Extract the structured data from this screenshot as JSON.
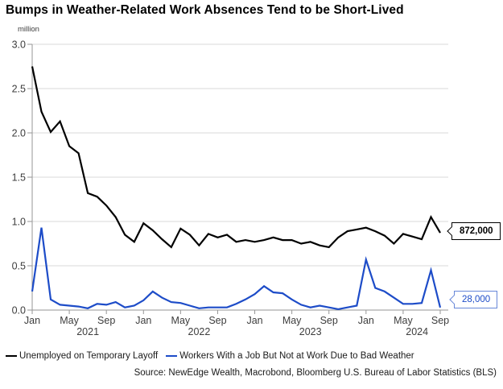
{
  "title": "Bumps in Weather-Related Work Absences Tend to be Short-Lived",
  "source": "Source: NewEdge Wealth, Macrobond, Bloomberg U.S. Bureau of Labor Statistics (BLS)",
  "colors": {
    "series_black": "#000000",
    "series_blue": "#1d4cc8",
    "gridline": "#d9d9d9",
    "axis": "#969696",
    "tick_label": "#3d3d3d",
    "callout_blue_border": "#6787d8"
  },
  "chart_data": {
    "type": "line",
    "title": "Bumps in Weather-Related Work Absences Tend to be Short-Lived",
    "unit_label": "million",
    "ylabel": "million",
    "xlabel": "",
    "ylim": [
      0.0,
      3.0
    ],
    "y_ticks": [
      0.0,
      0.5,
      1.0,
      1.5,
      2.0,
      2.5,
      3.0
    ],
    "x_start": "Jan 2021",
    "x_end": "Sep 2024",
    "months_total": 45,
    "x_tick_months": [
      0,
      4,
      8,
      12,
      16,
      20,
      24,
      28,
      32,
      36,
      40,
      44
    ],
    "x_tick_labels": [
      "Jan",
      "May",
      "Sep",
      "Jan",
      "May",
      "Sep",
      "Jan",
      "May",
      "Sep",
      "Jan",
      "May",
      "Sep"
    ],
    "year_labels": [
      {
        "text": "2021",
        "center_month": 6
      },
      {
        "text": "2022",
        "center_month": 18
      },
      {
        "text": "2023",
        "center_month": 30
      },
      {
        "text": "2024",
        "center_month": 41.5
      }
    ],
    "grid": true,
    "legend_position": "bottom",
    "series": [
      {
        "name": "Unemployed on Temporary Layoff",
        "color": "#000000",
        "values": [
          2.75,
          2.24,
          2.01,
          2.13,
          1.85,
          1.77,
          1.32,
          1.28,
          1.18,
          1.05,
          0.85,
          0.77,
          0.98,
          0.9,
          0.8,
          0.71,
          0.92,
          0.85,
          0.73,
          0.86,
          0.82,
          0.85,
          0.77,
          0.79,
          0.77,
          0.79,
          0.82,
          0.79,
          0.79,
          0.75,
          0.77,
          0.73,
          0.71,
          0.82,
          0.89,
          0.91,
          0.93,
          0.89,
          0.84,
          0.75,
          0.86,
          0.83,
          0.8,
          1.05,
          0.872
        ]
      },
      {
        "name": "Workers With a Job But Not at Work Due to Bad Weather",
        "color": "#1d4cc8",
        "values": [
          0.21,
          0.93,
          0.12,
          0.06,
          0.05,
          0.04,
          0.02,
          0.07,
          0.06,
          0.09,
          0.03,
          0.05,
          0.11,
          0.21,
          0.14,
          0.09,
          0.08,
          0.05,
          0.02,
          0.03,
          0.03,
          0.03,
          0.07,
          0.12,
          0.18,
          0.27,
          0.2,
          0.19,
          0.12,
          0.06,
          0.03,
          0.05,
          0.03,
          0.01,
          0.03,
          0.05,
          0.57,
          0.25,
          0.21,
          0.14,
          0.07,
          0.07,
          0.08,
          0.45,
          0.028
        ]
      }
    ],
    "annotations": [
      {
        "text": "872,000",
        "series": "Unemployed on Temporary Layoff",
        "value": 0.872
      },
      {
        "text": "28,000",
        "series": "Workers With a Job But Not at Work Due to Bad Weather",
        "value": 0.028
      }
    ]
  }
}
